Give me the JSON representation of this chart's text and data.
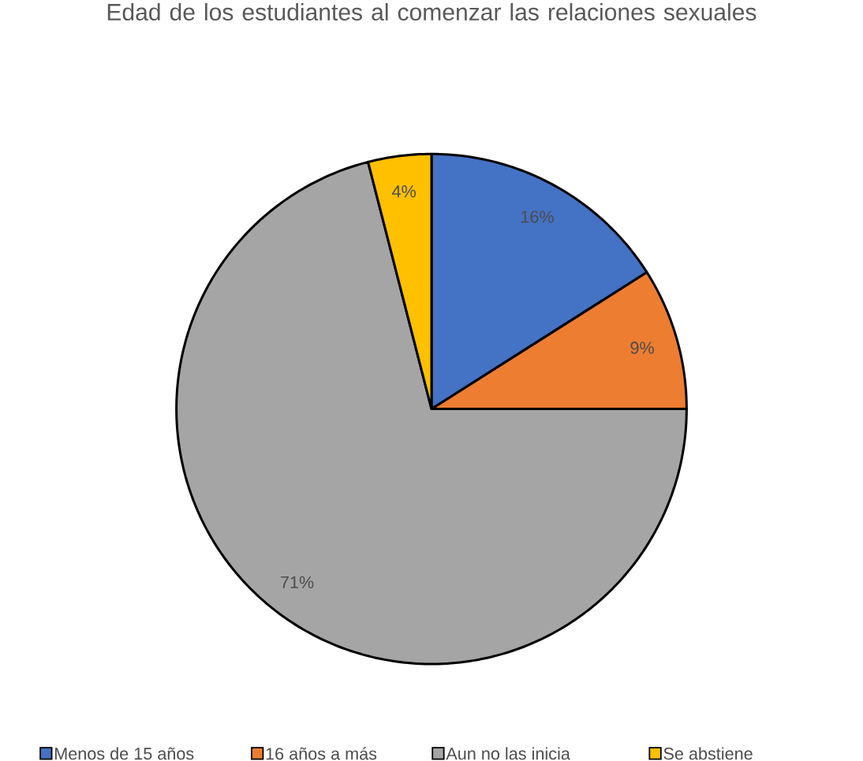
{
  "chart_data": {
    "type": "pie",
    "title": "Edad de los estudiantes al comenzar las relaciones sexuales",
    "categories": [
      "Menos de 15 años",
      "16 años a más",
      "Aun no las inicia",
      "Se abstiene"
    ],
    "values": [
      16,
      9,
      71,
      4
    ],
    "colors": [
      "#4472c4",
      "#ed7d31",
      "#a5a5a5",
      "#ffc000"
    ],
    "value_labels": [
      "16%",
      "9%",
      "71%",
      "4%"
    ],
    "legend": "bottom"
  }
}
